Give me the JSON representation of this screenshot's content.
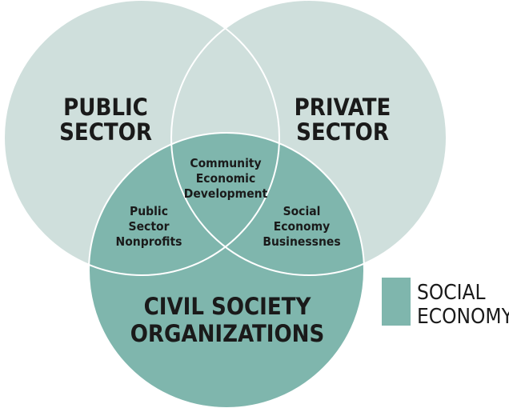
{
  "colors": {
    "outer_circle": "#cfdfdc",
    "social_economy": "#7fb6ad",
    "outline": "#ffffff",
    "text": "#1a1a1a"
  },
  "circles": {
    "public": {
      "line1": "PUBLIC",
      "line2": "SECTOR"
    },
    "private": {
      "line1": "PRIVATE",
      "line2": "SECTOR"
    },
    "civil": {
      "line1": "CIVIL SOCIETY",
      "line2": "ORGANIZATIONS"
    }
  },
  "overlaps": {
    "center": {
      "line1": "Community",
      "line2": "Economic",
      "line3": "Development"
    },
    "public_civil": {
      "line1": "Public",
      "line2": "Sector",
      "line3": "Nonprofits"
    },
    "private_civil": {
      "line1": "Social",
      "line2": "Economy",
      "line3": "Businessnes"
    }
  },
  "legend": {
    "line1": "SOCIAL",
    "line2": "ECONOMY"
  }
}
